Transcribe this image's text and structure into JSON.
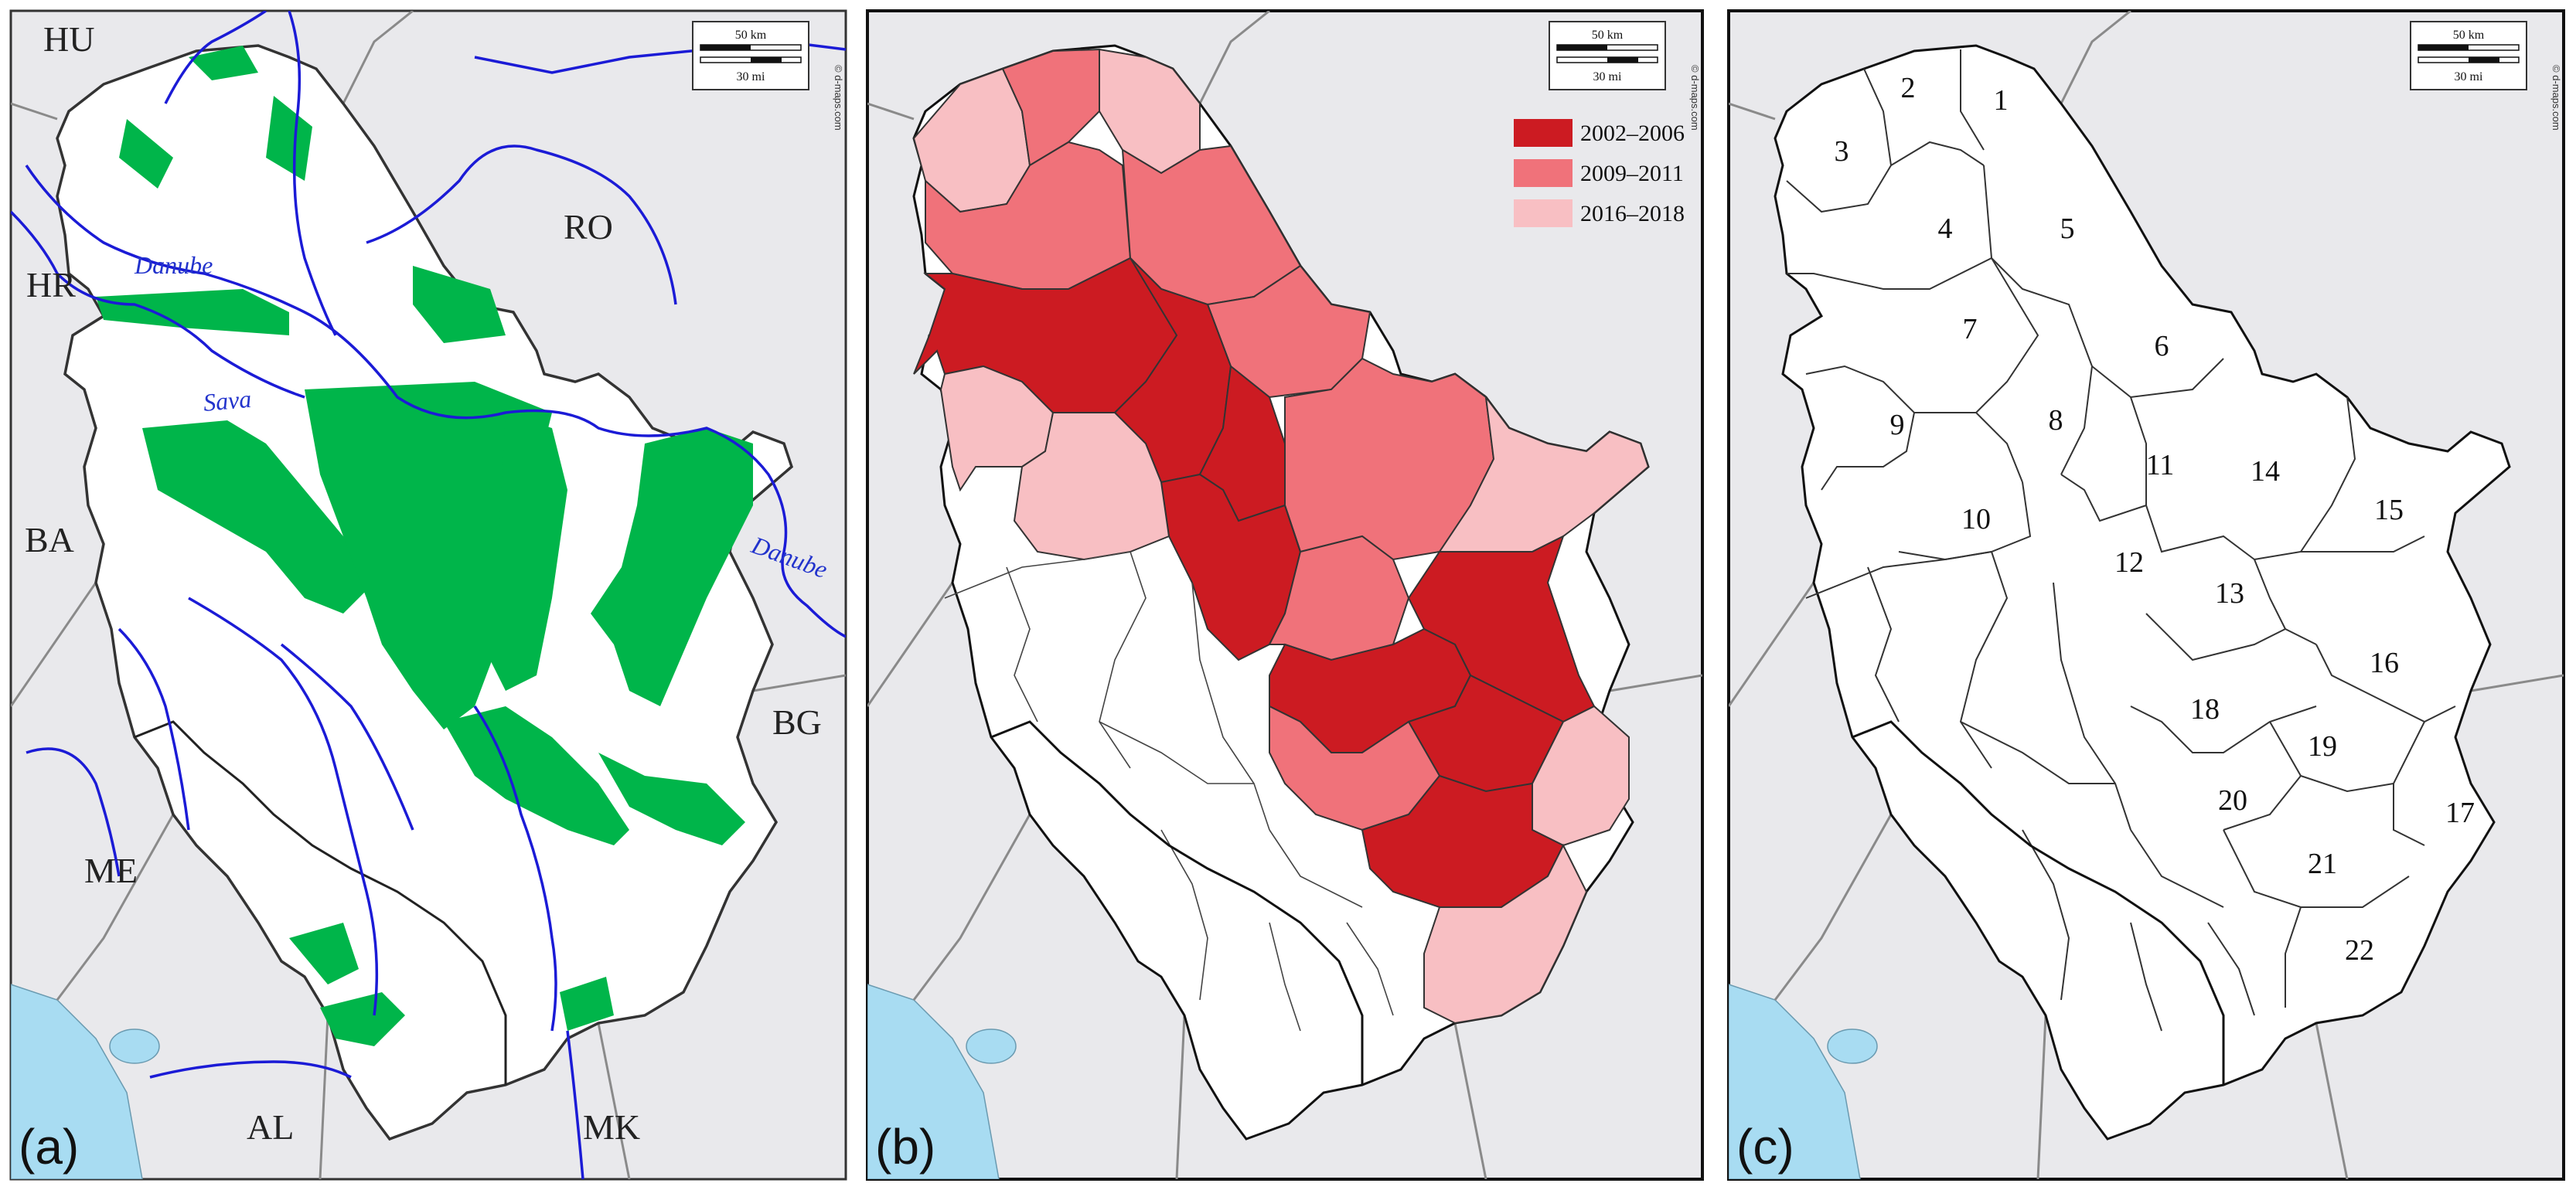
{
  "panel_a": {
    "label": "(a)",
    "countries": {
      "hu": "HU",
      "hr": "HR",
      "ro": "RO",
      "ba": "BA",
      "me": "ME",
      "bg": "BG",
      "al": "AL",
      "mk": "MK"
    },
    "rivers": {
      "danube_1": "Danube",
      "danube_2": "Danube",
      "sava": "Sava"
    }
  },
  "panel_b": {
    "label": "(b)",
    "legend": [
      {
        "label": "2002–2006",
        "color": "#cc1b22"
      },
      {
        "label": "2009–2011",
        "color": "#f0727a"
      },
      {
        "label": "2016–2018",
        "color": "#f8bfc3"
      }
    ]
  },
  "panel_c": {
    "label": "(c)",
    "districts": [
      "1",
      "2",
      "3",
      "4",
      "5",
      "6",
      "7",
      "8",
      "9",
      "10",
      "11",
      "12",
      "13",
      "14",
      "15",
      "16",
      "17",
      "18",
      "19",
      "20",
      "21",
      "22"
    ]
  },
  "scale_bar": {
    "km": "50 km",
    "mi": "30 mi",
    "credit": "© d-maps.com"
  },
  "colors": {
    "forest": "#00b54a",
    "river": "#1b1bd6",
    "sea": "#a8dcf2",
    "surround": "#e9e9ec",
    "serbia": "#ffffff",
    "border_country": "#8a8a8a",
    "border_inner": "#111111"
  }
}
